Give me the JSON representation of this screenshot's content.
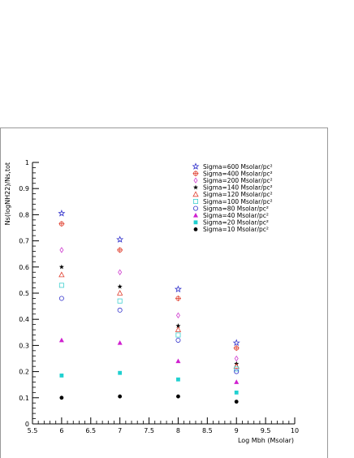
{
  "chart_data": {
    "type": "scatter",
    "xlabel": "Log Mbh (Msolar)",
    "ylabel": "Ns(logNH22)/Ns,tot",
    "xlim": [
      5.5,
      10
    ],
    "ylim": [
      0,
      1
    ],
    "xticks": [
      "5.5",
      "6",
      "6.5",
      "7",
      "7.5",
      "8",
      "8.5",
      "9",
      "9.5",
      "10"
    ],
    "yticks": [
      "0",
      "0.1",
      "0.2",
      "0.3",
      "0.4",
      "0.5",
      "0.6",
      "0.7",
      "0.8",
      "0.9",
      "1"
    ],
    "x": [
      6,
      7,
      8,
      9
    ],
    "legend_position": "top-right",
    "grid": false,
    "series": [
      {
        "name": "Sigma=600 Msolar/pc²",
        "marker": "star-open",
        "color": "#3333cc",
        "values": [
          0.805,
          0.705,
          0.515,
          0.31
        ]
      },
      {
        "name": "Sigma=400 Msolar/pc²",
        "marker": "circle-plus",
        "color": "#e04030",
        "values": [
          0.765,
          0.665,
          0.48,
          0.29
        ]
      },
      {
        "name": "Sigma=200 Msolar/pc²",
        "marker": "diamond-open",
        "color": "#d040d0",
        "values": [
          0.665,
          0.58,
          0.415,
          0.25
        ]
      },
      {
        "name": "Sigma=140 Msolar/pc²",
        "marker": "star-filled",
        "color": "#000000",
        "values": [
          0.6,
          0.525,
          0.375,
          0.23
        ]
      },
      {
        "name": "Sigma=120 Msolar/pc²",
        "marker": "triangle-open",
        "color": "#e04030",
        "values": [
          0.57,
          0.5,
          0.36,
          0.22
        ]
      },
      {
        "name": "Sigma=100 Msolar/pc²",
        "marker": "square-open",
        "color": "#40d0d0",
        "values": [
          0.53,
          0.47,
          0.34,
          0.21
        ]
      },
      {
        "name": "Sigma=80 Msolar/pc²",
        "marker": "circle-open",
        "color": "#3333cc",
        "values": [
          0.48,
          0.435,
          0.32,
          0.2
        ]
      },
      {
        "name": "Sigma=40 Msolar/pc²",
        "marker": "triangle-filled",
        "color": "#d020d0",
        "values": [
          0.32,
          0.31,
          0.24,
          0.16
        ]
      },
      {
        "name": "Sigma=20 Msolar/pc²",
        "marker": "square-filled",
        "color": "#20d0d0",
        "values": [
          0.185,
          0.195,
          0.17,
          0.12
        ]
      },
      {
        "name": "Sigma=10 Msolar/pc²",
        "marker": "circle-filled",
        "color": "#000000",
        "values": [
          0.1,
          0.105,
          0.105,
          0.085
        ]
      }
    ]
  }
}
